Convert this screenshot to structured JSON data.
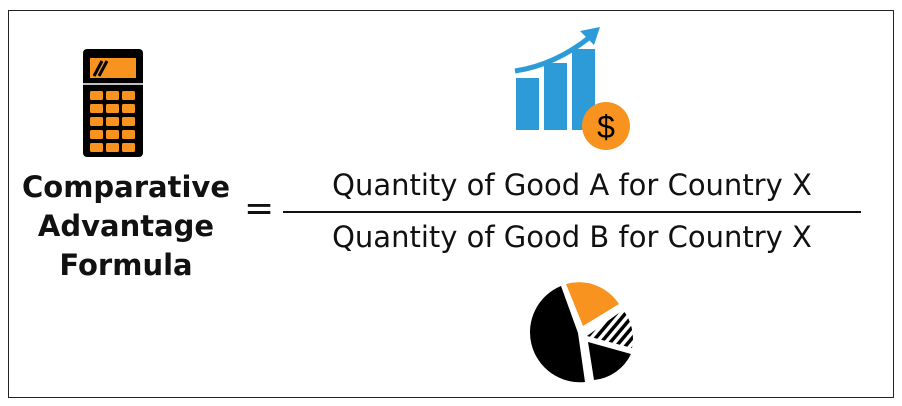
{
  "formula": {
    "title_lines": [
      "Comparative",
      "Advantage",
      "Formula"
    ],
    "equals": "=",
    "numerator": "Quantity of Good A for Country X",
    "denominator": "Quantity of Good B for Country X"
  },
  "icons": {
    "calculator": "calculator-icon",
    "growth_chart": "bar-chart-dollar-icon",
    "pie": "pie-chart-icon",
    "dollar_symbol": "$"
  },
  "colors": {
    "orange": "#F7931E",
    "blue": "#2E9BD9",
    "black": "#000000"
  }
}
